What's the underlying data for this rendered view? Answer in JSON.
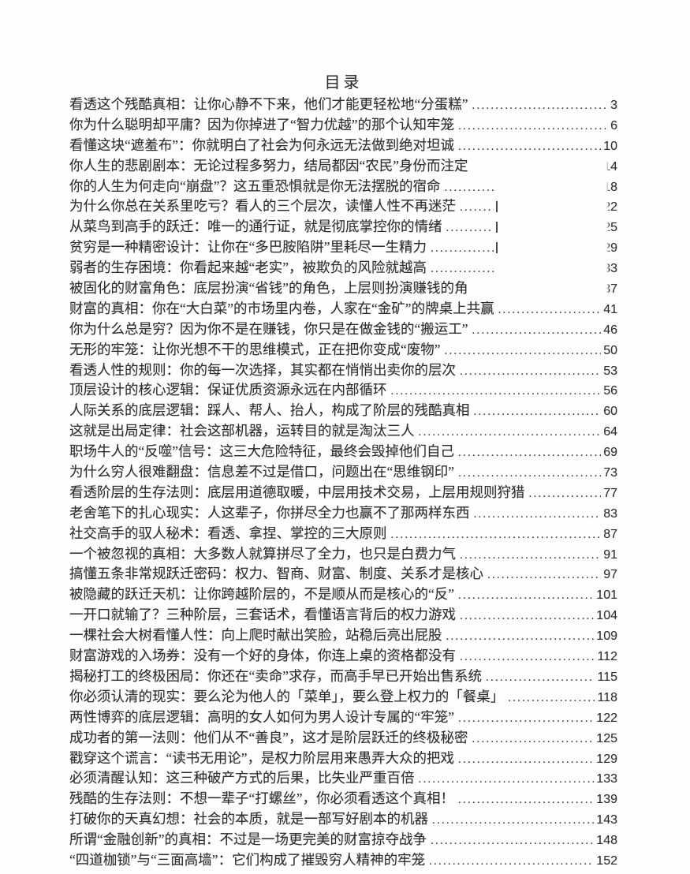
{
  "page": {
    "title": "目录",
    "background_color": "#fefefe",
    "text_color": "#2d2d2d"
  },
  "toc": {
    "entries": [
      {
        "title": "看透这个残酷真相：让你心静不下来，他们才能更轻松地“分蛋糕”",
        "page": "3",
        "leader": "full",
        "clipped": false,
        "bar": false
      },
      {
        "title": "你为什么聪明却平庸？因为你掉进了“智力优越”的那个认知牢笼",
        "page": "6",
        "leader": "full",
        "clipped": false,
        "bar": false
      },
      {
        "title": "看懂这块“遮羞布”：你就明白了社会为何永远无法做到绝对坦诚",
        "page": "10",
        "leader": "full",
        "clipped": false,
        "bar": false
      },
      {
        "title": "你人生的悲剧剧本：无论过程多努力，结局都因“农民”身份而注定",
        "page": "14",
        "leader": "none",
        "clipped": true,
        "bar": false
      },
      {
        "title": "你的人生为何走向“崩盘”？这五重恐惧就是你无法摆脱的宿命",
        "page": "18",
        "leader": "short",
        "clipped": true,
        "bar": false
      },
      {
        "title": "为什么你总在关系里吃亏？看人的三个层次，读懂人性不再迷茫",
        "page": "22",
        "leader": "short",
        "clipped": true,
        "bar": true
      },
      {
        "title": "从菜鸟到高手的跃迁：唯一的通行证，就是彻底掌控你的情绪",
        "page": "25",
        "leader": "short",
        "clipped": true,
        "bar": true
      },
      {
        "title": "贫穷是一种精密设计：让你在“多巴胺陷阱”里耗尽一生精力",
        "page": "29",
        "leader": "short",
        "clipped": true,
        "bar": true
      },
      {
        "title": "弱者的生存困境：你看起来越“老实”，被欺负的风险就越高",
        "page": "33",
        "leader": "short",
        "clipped": true,
        "bar": false
      },
      {
        "title": "被固化的财富角色：底层扮演“省钱”的角色，上层则扮演赚钱的角",
        "page": "37",
        "leader": "none",
        "clipped": true,
        "bar": false
      },
      {
        "title": "财富的真相：你在“大白菜”的市场里内卷，人家在“金矿”的牌桌上共赢",
        "page": "41",
        "leader": "full",
        "clipped": false,
        "bar": false
      },
      {
        "title": "你为什么总是穷？因为你不是在赚钱，你只是在做金钱的“搬运工”",
        "page": "46",
        "leader": "full",
        "clipped": false,
        "bar": false
      },
      {
        "title": "无形的牢笼：让你光想不干的思维模式，正在把你变成“废物”",
        "page": "50",
        "leader": "full",
        "clipped": false,
        "bar": false
      },
      {
        "title": "看透人性的规则：你的每一次选择，其实都在悄悄出卖你的层次",
        "page": "53",
        "leader": "full",
        "clipped": false,
        "bar": false
      },
      {
        "title": "顶层设计的核心逻辑：保证优质资源永远在内部循环",
        "page": "56",
        "leader": "full",
        "clipped": false,
        "bar": false
      },
      {
        "title": "人际关系的底层逻辑：踩人、帮人、抬人，构成了阶层的残酷真相",
        "page": "60",
        "leader": "full",
        "clipped": false,
        "bar": false
      },
      {
        "title": "这就是出局定律：社会这部机器，运转目的就是淘汰三人",
        "page": "64",
        "leader": "full",
        "clipped": false,
        "bar": false
      },
      {
        "title": "职场牛人的“反噬”信号：这三大危险特征，最终会毁掉他们自己",
        "page": "69",
        "leader": "full",
        "clipped": false,
        "bar": false
      },
      {
        "title": "为什么穷人很难翻盘：信息差不过是借口，问题出在“思维钢印”",
        "page": "73",
        "leader": "full",
        "clipped": false,
        "bar": false
      },
      {
        "title": "看透阶层的生存法则：底层用道德取暖，中层用技术交易，上层用规则狩猎",
        "page": "77",
        "leader": "full",
        "clipped": false,
        "bar": false
      },
      {
        "title": "老舍笔下的扎心现实：人这辈子，你拼尽全力也赢不了那两样东西",
        "page": "83",
        "leader": "full",
        "clipped": false,
        "bar": false
      },
      {
        "title": "社交高手的驭人秘术：看透、拿捏、掌控的三大原则",
        "page": "87",
        "leader": "full",
        "clipped": false,
        "bar": false
      },
      {
        "title": "一个被忽视的真相：大多数人就算拼尽了全力，也只是白费力气",
        "page": "91",
        "leader": "full",
        "clipped": false,
        "bar": false
      },
      {
        "title": "搞懂五条非常规跃迁密码：权力、智商、财富、制度、关系才是核心",
        "page": "97",
        "leader": "full",
        "clipped": false,
        "bar": false
      },
      {
        "title": "被隐藏的跃迁天机：让你跨越阶层的，不是顺从而是核心的“反”",
        "page": "101",
        "leader": "full",
        "clipped": false,
        "bar": false
      },
      {
        "title": "一开口就输了？三种阶层，三套话术，看懂语言背后的权力游戏",
        "page": "104",
        "leader": "full",
        "clipped": false,
        "bar": false
      },
      {
        "title": "一棵社会大树看懂人性：向上爬时献出笑脸，站稳后亮出屁股",
        "page": "109",
        "leader": "full",
        "clipped": false,
        "bar": false
      },
      {
        "title": "财富游戏的入场券：没有一个好的身体，你连上桌的资格都没有",
        "page": "112",
        "leader": "full",
        "clipped": false,
        "bar": false
      },
      {
        "title": "揭秘打工的终极困局：你还在“卖命”求存，而高手早已开始出售系统",
        "page": "115",
        "leader": "full",
        "clipped": false,
        "bar": false
      },
      {
        "title": "你必须认清的现实：要么沦为他人的「菜单」，要么登上权力的「餐桌」",
        "page": "118",
        "leader": "full",
        "clipped": false,
        "bar": false
      },
      {
        "title": "两性博弈的底层逻辑：高明的女人如何为男人设计专属的“牢笼”",
        "page": "122",
        "leader": "full",
        "clipped": false,
        "bar": false
      },
      {
        "title": "成功者的第一法则：他们从不“善良”，这才是阶层跃迁的终极秘密",
        "page": "125",
        "leader": "full",
        "clipped": false,
        "bar": false
      },
      {
        "title": "戳穿这个谎言：“读书无用论”，是权力阶层用来愚弄大众的把戏",
        "page": "129",
        "leader": "full",
        "clipped": false,
        "bar": false
      },
      {
        "title": "必须清醒认知：这三种破产方式的后果，比失业严重百倍",
        "page": "133",
        "leader": "full",
        "clipped": false,
        "bar": false
      },
      {
        "title": "残酷的生存法则：不想一辈子“打螺丝”，你必须看透这个真相！",
        "page": "139",
        "leader": "full",
        "clipped": false,
        "bar": false
      },
      {
        "title": "打破你的天真幻想：社会的本质，就是一部写好剧本的机器",
        "page": "143",
        "leader": "full",
        "clipped": false,
        "bar": false
      },
      {
        "title": "所谓“金融创新”的真相：不过是一场更完美的财富掠夺战争",
        "page": "148",
        "leader": "full",
        "clipped": false,
        "bar": false
      },
      {
        "title": "“四道枷锁”与“三面高墙”：它们构成了摧毁穷人精神的牢笼",
        "page": "152",
        "leader": "full",
        "clipped": false,
        "bar": false
      }
    ]
  }
}
